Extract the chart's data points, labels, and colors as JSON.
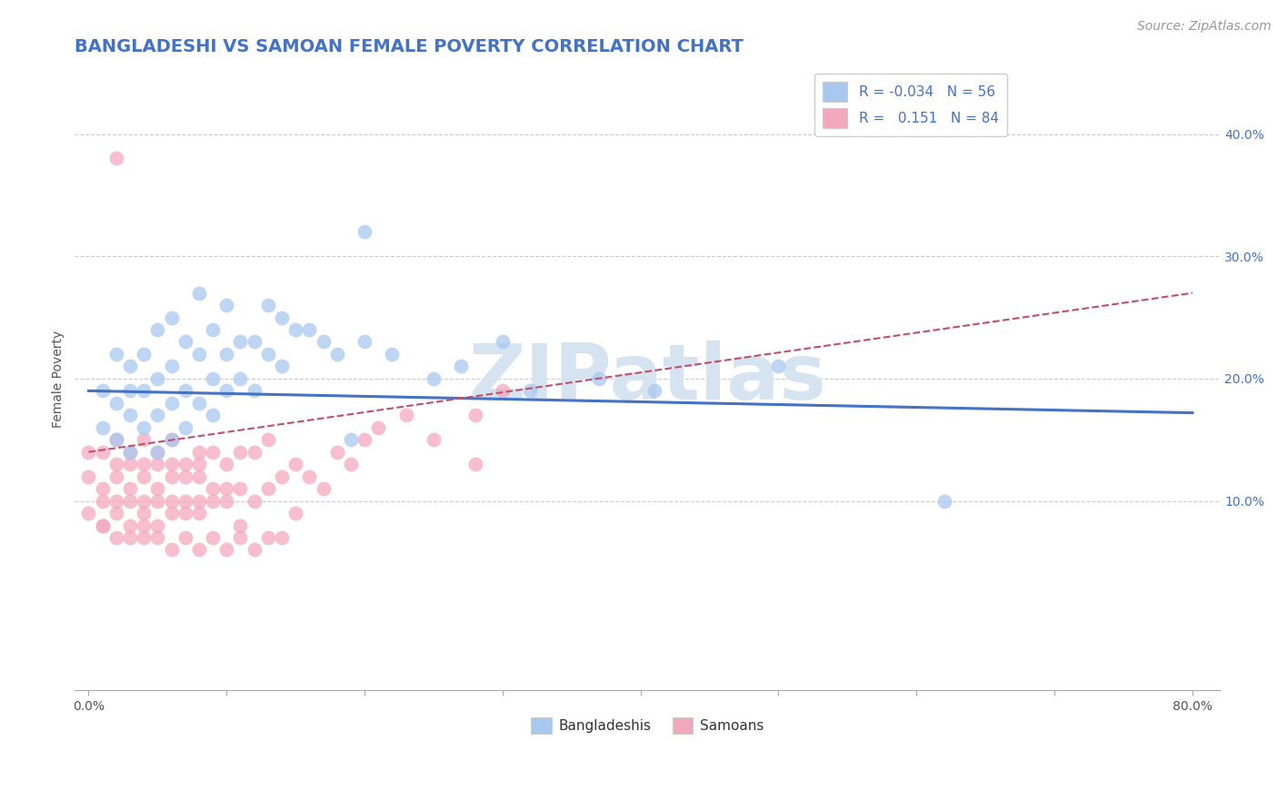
{
  "title": "BANGLADESHI VS SAMOAN FEMALE POVERTY CORRELATION CHART",
  "source": "Source: ZipAtlas.com",
  "xlabel_ticks_show": [
    "0.0%",
    "",
    "",
    "",
    "",
    "",
    "",
    "",
    "80.0%"
  ],
  "xlabel_vals": [
    0.0,
    0.1,
    0.2,
    0.3,
    0.4,
    0.5,
    0.6,
    0.7,
    0.8
  ],
  "ylabel": "Female Poverty",
  "ylabel_ticks": [
    "10.0%",
    "20.0%",
    "30.0%",
    "40.0%"
  ],
  "ylabel_vals": [
    0.1,
    0.2,
    0.3,
    0.4
  ],
  "xlim": [
    -0.01,
    0.82
  ],
  "ylim": [
    -0.055,
    0.455
  ],
  "legend_label1": "Bangladeshis",
  "legend_label2": "Samoans",
  "R1": -0.034,
  "N1": 56,
  "R2": 0.151,
  "N2": 84,
  "color1": "#a8c8f0",
  "color2": "#f4a8c0",
  "line_color1": "#4472c4",
  "line_color2": "#c0506a",
  "watermark": "ZIPatlas",
  "watermark_color": "#d5e4f0",
  "title_color": "#4472c4",
  "title_fontsize": 14,
  "source_fontsize": 10,
  "axis_label_fontsize": 10,
  "tick_fontsize": 10,
  "legend_fontsize": 11,
  "scatter1_x": [
    0.01,
    0.01,
    0.02,
    0.02,
    0.02,
    0.03,
    0.03,
    0.03,
    0.03,
    0.04,
    0.04,
    0.04,
    0.05,
    0.05,
    0.05,
    0.05,
    0.06,
    0.06,
    0.06,
    0.06,
    0.07,
    0.07,
    0.07,
    0.08,
    0.08,
    0.08,
    0.09,
    0.09,
    0.09,
    0.1,
    0.1,
    0.1,
    0.11,
    0.11,
    0.12,
    0.12,
    0.13,
    0.13,
    0.14,
    0.14,
    0.15,
    0.16,
    0.17,
    0.18,
    0.19,
    0.2,
    0.2,
    0.22,
    0.25,
    0.27,
    0.3,
    0.32,
    0.37,
    0.41,
    0.5,
    0.62
  ],
  "scatter1_y": [
    0.19,
    0.16,
    0.18,
    0.15,
    0.22,
    0.17,
    0.14,
    0.21,
    0.19,
    0.16,
    0.19,
    0.22,
    0.14,
    0.17,
    0.2,
    0.24,
    0.15,
    0.18,
    0.21,
    0.25,
    0.16,
    0.19,
    0.23,
    0.18,
    0.22,
    0.27,
    0.17,
    0.2,
    0.24,
    0.19,
    0.22,
    0.26,
    0.2,
    0.23,
    0.19,
    0.23,
    0.22,
    0.26,
    0.21,
    0.25,
    0.24,
    0.24,
    0.23,
    0.22,
    0.15,
    0.23,
    0.32,
    0.22,
    0.2,
    0.21,
    0.23,
    0.19,
    0.2,
    0.19,
    0.21,
    0.1
  ],
  "scatter2_x": [
    0.0,
    0.0,
    0.0,
    0.01,
    0.01,
    0.01,
    0.01,
    0.01,
    0.02,
    0.02,
    0.02,
    0.02,
    0.02,
    0.02,
    0.03,
    0.03,
    0.03,
    0.03,
    0.03,
    0.04,
    0.04,
    0.04,
    0.04,
    0.04,
    0.04,
    0.05,
    0.05,
    0.05,
    0.05,
    0.05,
    0.06,
    0.06,
    0.06,
    0.06,
    0.06,
    0.07,
    0.07,
    0.07,
    0.07,
    0.08,
    0.08,
    0.08,
    0.08,
    0.08,
    0.09,
    0.09,
    0.09,
    0.1,
    0.1,
    0.1,
    0.11,
    0.11,
    0.11,
    0.12,
    0.12,
    0.13,
    0.13,
    0.14,
    0.15,
    0.15,
    0.16,
    0.17,
    0.18,
    0.19,
    0.2,
    0.21,
    0.23,
    0.25,
    0.28,
    0.28,
    0.3,
    0.02,
    0.03,
    0.04,
    0.05,
    0.06,
    0.07,
    0.08,
    0.09,
    0.1,
    0.11,
    0.12,
    0.13,
    0.14
  ],
  "scatter2_y": [
    0.12,
    0.09,
    0.14,
    0.08,
    0.11,
    0.14,
    0.1,
    0.08,
    0.07,
    0.1,
    0.13,
    0.09,
    0.12,
    0.15,
    0.08,
    0.11,
    0.14,
    0.1,
    0.13,
    0.07,
    0.1,
    0.13,
    0.09,
    0.12,
    0.15,
    0.08,
    0.11,
    0.14,
    0.1,
    0.13,
    0.09,
    0.12,
    0.15,
    0.1,
    0.13,
    0.1,
    0.13,
    0.09,
    0.12,
    0.09,
    0.13,
    0.1,
    0.14,
    0.12,
    0.1,
    0.14,
    0.11,
    0.1,
    0.13,
    0.11,
    0.11,
    0.14,
    0.08,
    0.1,
    0.14,
    0.11,
    0.15,
    0.12,
    0.13,
    0.09,
    0.12,
    0.11,
    0.14,
    0.13,
    0.15,
    0.16,
    0.17,
    0.15,
    0.13,
    0.17,
    0.19,
    0.38,
    0.07,
    0.08,
    0.07,
    0.06,
    0.07,
    0.06,
    0.07,
    0.06,
    0.07,
    0.06,
    0.07,
    0.07
  ],
  "line1_x": [
    0.0,
    0.8
  ],
  "line1_y": [
    0.19,
    0.172
  ],
  "line2_x": [
    0.0,
    0.8
  ],
  "line2_y": [
    0.14,
    0.27
  ]
}
